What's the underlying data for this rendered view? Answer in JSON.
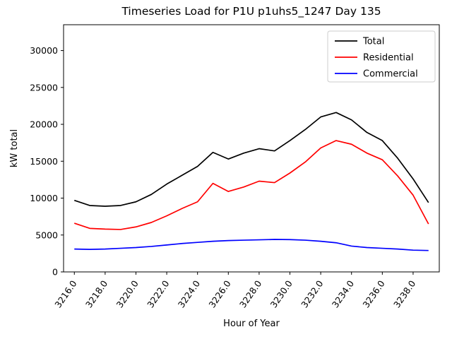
{
  "chart_data": {
    "type": "line",
    "title": "Timeseries Load for P1U p1uhs5_1247  Day 135",
    "xlabel": "Hour of Year",
    "ylabel": "kW total",
    "xlim": [
      3215.3,
      3239.7
    ],
    "ylim": [
      0,
      33500
    ],
    "grid": false,
    "legend_position": "upper right",
    "x": [
      3216,
      3217,
      3218,
      3219,
      3220,
      3221,
      3222,
      3223,
      3224,
      3225,
      3226,
      3227,
      3228,
      3229,
      3230,
      3231,
      3232,
      3233,
      3234,
      3235,
      3236,
      3237,
      3238,
      3239
    ],
    "x_ticks": [
      {
        "value": 3216,
        "label": "3216.0"
      },
      {
        "value": 3218,
        "label": "3218.0"
      },
      {
        "value": 3220,
        "label": "3220.0"
      },
      {
        "value": 3222,
        "label": "3222.0"
      },
      {
        "value": 3224,
        "label": "3224.0"
      },
      {
        "value": 3226,
        "label": "3226.0"
      },
      {
        "value": 3228,
        "label": "3228.0"
      },
      {
        "value": 3230,
        "label": "3230.0"
      },
      {
        "value": 3232,
        "label": "3232.0"
      },
      {
        "value": 3234,
        "label": "3234.0"
      },
      {
        "value": 3236,
        "label": "3236.0"
      },
      {
        "value": 3238,
        "label": "3238.0"
      }
    ],
    "y_ticks": [
      0,
      5000,
      10000,
      15000,
      20000,
      25000,
      30000
    ],
    "series": [
      {
        "name": "Total",
        "color": "#000000",
        "values": [
          9700,
          9000,
          8900,
          9000,
          9500,
          10500,
          11900,
          13100,
          14300,
          16200,
          15300,
          16100,
          16700,
          16400,
          17800,
          19300,
          21000,
          21600,
          20600,
          18900,
          17800,
          15400,
          12600,
          9400
        ]
      },
      {
        "name": "Residential",
        "color": "#ff0000",
        "values": [
          6600,
          5900,
          5800,
          5750,
          6100,
          6700,
          7600,
          8600,
          9500,
          12000,
          10900,
          11500,
          12300,
          12100,
          13400,
          14900,
          16800,
          17800,
          17300,
          16100,
          15200,
          13000,
          10400,
          6500
        ]
      },
      {
        "name": "Commercial",
        "color": "#0000ff",
        "values": [
          3100,
          3050,
          3100,
          3200,
          3300,
          3450,
          3650,
          3850,
          4000,
          4150,
          4250,
          4300,
          4350,
          4400,
          4380,
          4300,
          4150,
          3950,
          3500,
          3300,
          3200,
          3100,
          2950,
          2900
        ]
      }
    ]
  }
}
